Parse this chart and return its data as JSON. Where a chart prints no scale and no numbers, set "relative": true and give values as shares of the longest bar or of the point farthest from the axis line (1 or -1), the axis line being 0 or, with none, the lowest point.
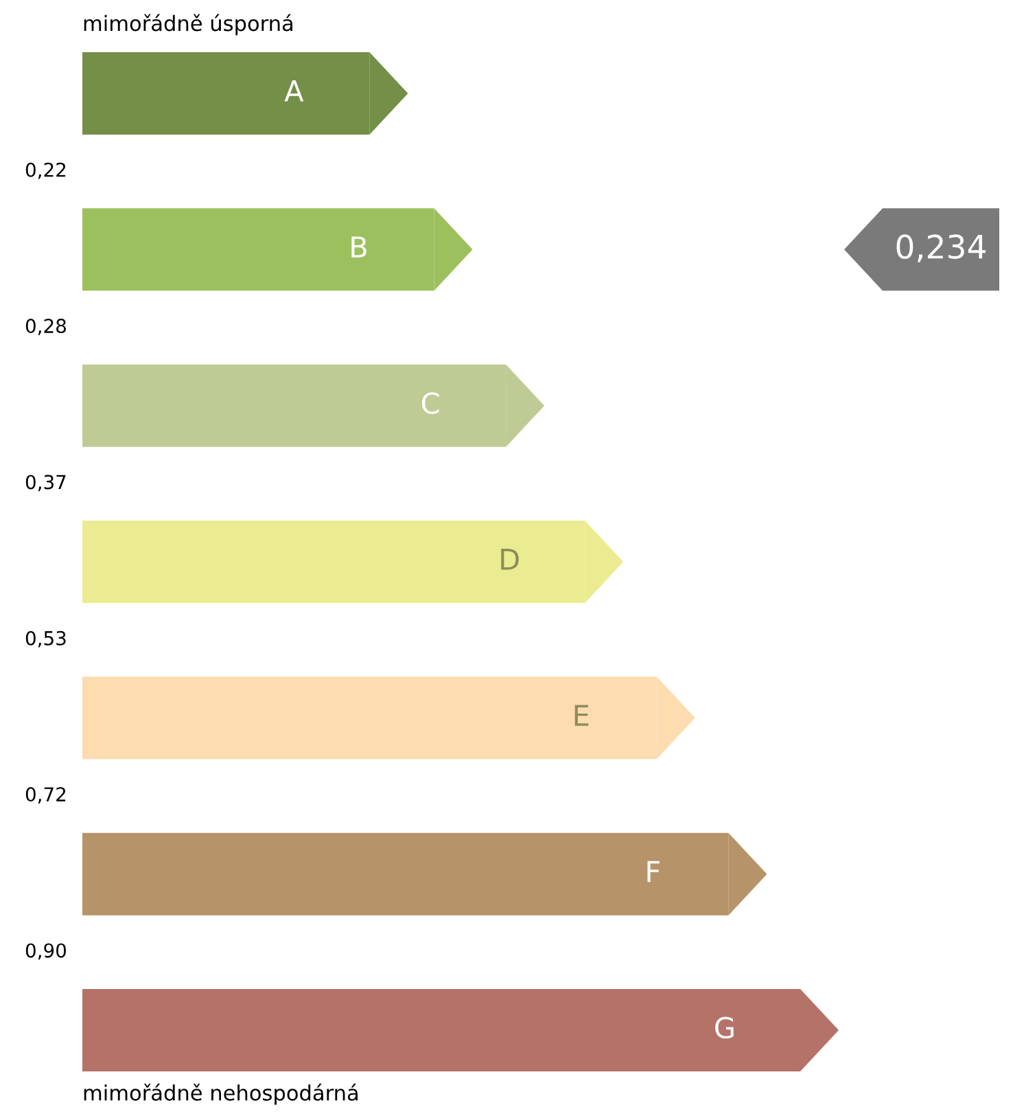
{
  "chart_data": {
    "type": "bar",
    "orientation": "horizontal",
    "relative": true,
    "categories": [
      "A",
      "B",
      "C",
      "D",
      "E",
      "F",
      "G"
    ],
    "values": [
      0.4,
      0.49,
      0.59,
      0.7,
      0.8,
      0.9,
      1.0
    ],
    "colors": [
      "#738f48",
      "#9dc05e",
      "#bfcb94",
      "#ebec91",
      "#fddcb0",
      "#b69368",
      "#b57268"
    ],
    "annotations": [
      "mimořádně úsporná",
      "0,22",
      "0,28",
      "0,37",
      "0,53",
      "0,72",
      "0,90",
      "mimořádně nehospodárná",
      "0,234"
    ]
  }
}
